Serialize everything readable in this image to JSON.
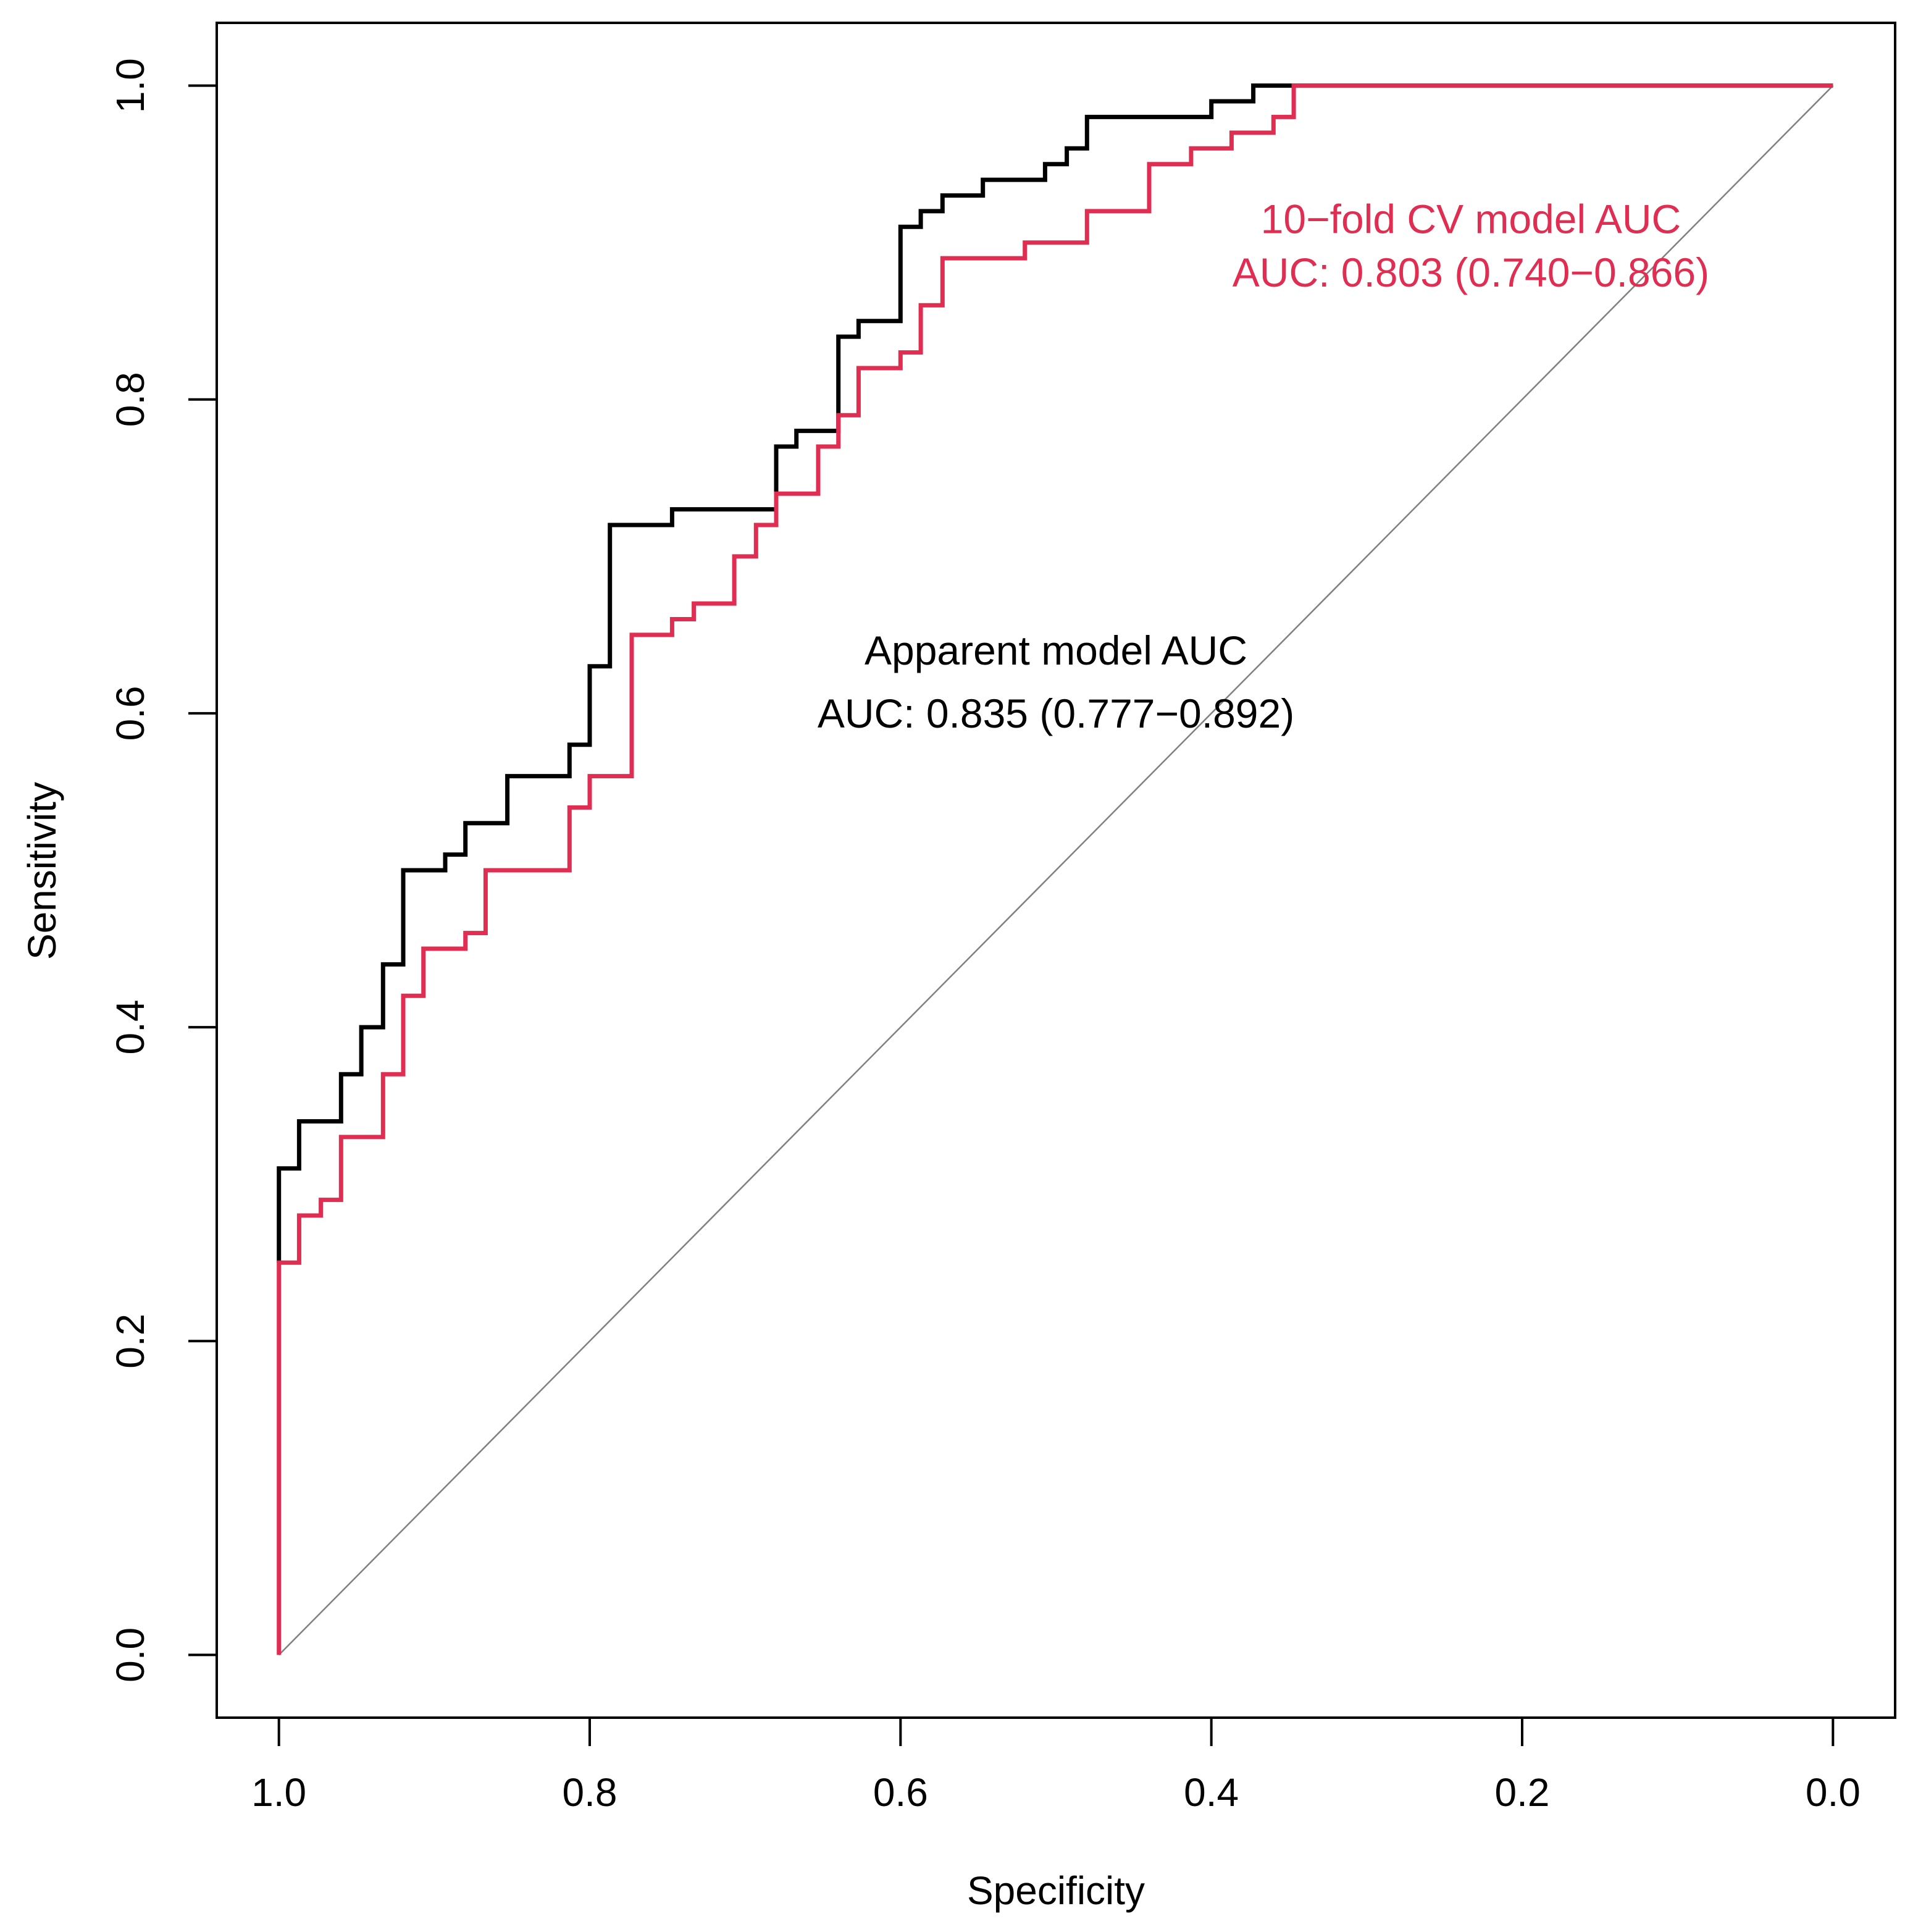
{
  "chart_data": {
    "type": "line",
    "title": "",
    "xlabel": "Specificity",
    "ylabel": "Sensitivity",
    "xlim": [
      1.04,
      -0.04
    ],
    "ylim": [
      -0.04,
      1.04
    ],
    "x_reversed": true,
    "x_ticks": [
      {
        "value": 1.0,
        "label": "1.0"
      },
      {
        "value": 0.8,
        "label": "0.8"
      },
      {
        "value": 0.6,
        "label": "0.6"
      },
      {
        "value": 0.4,
        "label": "0.4"
      },
      {
        "value": 0.2,
        "label": "0.2"
      },
      {
        "value": 0.0,
        "label": "0.0"
      }
    ],
    "y_ticks": [
      {
        "value": 0.0,
        "label": "0.0"
      },
      {
        "value": 0.2,
        "label": "0.2"
      },
      {
        "value": 0.4,
        "label": "0.4"
      },
      {
        "value": 0.6,
        "label": "0.6"
      },
      {
        "value": 0.8,
        "label": "0.8"
      },
      {
        "value": 1.0,
        "label": "1.0"
      }
    ],
    "reference_line": {
      "name": "chance",
      "x": [
        1.0,
        0.0
      ],
      "y": [
        0.0,
        1.0
      ],
      "color": "#808080"
    },
    "series": [
      {
        "name": "Apparent model",
        "color": "#000000",
        "x": [
          1.0,
          1.0,
          0.987,
          0.987,
          0.96,
          0.96,
          0.947,
          0.947,
          0.933,
          0.933,
          0.92,
          0.92,
          0.893,
          0.893,
          0.88,
          0.88,
          0.853,
          0.853,
          0.813,
          0.813,
          0.8,
          0.8,
          0.787,
          0.787,
          0.747,
          0.747,
          0.68,
          0.68,
          0.667,
          0.667,
          0.64,
          0.64,
          0.627,
          0.627,
          0.6,
          0.6,
          0.587,
          0.587,
          0.573,
          0.573,
          0.547,
          0.547,
          0.507,
          0.507,
          0.493,
          0.493,
          0.48,
          0.48,
          0.4,
          0.4,
          0.373,
          0.373,
          0.347,
          0.347,
          0.0
        ],
        "y": [
          0.25,
          0.31,
          0.31,
          0.34,
          0.34,
          0.37,
          0.37,
          0.4,
          0.4,
          0.44,
          0.44,
          0.5,
          0.5,
          0.51,
          0.51,
          0.53,
          0.53,
          0.56,
          0.56,
          0.58,
          0.58,
          0.63,
          0.63,
          0.72,
          0.72,
          0.73,
          0.73,
          0.77,
          0.77,
          0.78,
          0.78,
          0.84,
          0.84,
          0.85,
          0.85,
          0.91,
          0.91,
          0.92,
          0.92,
          0.93,
          0.93,
          0.94,
          0.94,
          0.95,
          0.95,
          0.96,
          0.96,
          0.98,
          0.98,
          0.99,
          0.99,
          1.0,
          1.0,
          1.0,
          1.0
        ]
      },
      {
        "name": "10-fold CV model",
        "color": "#DF2E51",
        "x": [
          1.0,
          1.0,
          0.987,
          0.987,
          0.973,
          0.973,
          0.96,
          0.96,
          0.933,
          0.933,
          0.92,
          0.92,
          0.907,
          0.907,
          0.88,
          0.88,
          0.867,
          0.867,
          0.813,
          0.813,
          0.8,
          0.8,
          0.773,
          0.773,
          0.747,
          0.747,
          0.733,
          0.733,
          0.707,
          0.707,
          0.693,
          0.693,
          0.68,
          0.68,
          0.653,
          0.653,
          0.64,
          0.64,
          0.627,
          0.627,
          0.6,
          0.6,
          0.587,
          0.587,
          0.573,
          0.573,
          0.52,
          0.52,
          0.48,
          0.48,
          0.44,
          0.44,
          0.413,
          0.413,
          0.387,
          0.387,
          0.36,
          0.36,
          0.347,
          0.347,
          0.333,
          0.333,
          0.0
        ],
        "y": [
          0.0,
          0.25,
          0.25,
          0.28,
          0.28,
          0.29,
          0.29,
          0.33,
          0.33,
          0.37,
          0.37,
          0.42,
          0.42,
          0.45,
          0.45,
          0.46,
          0.46,
          0.5,
          0.5,
          0.54,
          0.54,
          0.56,
          0.56,
          0.65,
          0.65,
          0.66,
          0.66,
          0.67,
          0.67,
          0.7,
          0.7,
          0.72,
          0.72,
          0.74,
          0.74,
          0.77,
          0.77,
          0.79,
          0.79,
          0.82,
          0.82,
          0.83,
          0.83,
          0.86,
          0.86,
          0.89,
          0.89,
          0.9,
          0.9,
          0.92,
          0.92,
          0.95,
          0.95,
          0.96,
          0.96,
          0.97,
          0.97,
          0.98,
          0.98,
          1.0,
          1.0,
          1.0,
          1.0
        ]
      }
    ],
    "annotations": [
      {
        "id": "cv-title",
        "text": "10−fold CV model AUC",
        "x": 0.233,
        "y": 0.906,
        "color": "#DF2E51"
      },
      {
        "id": "cv-auc",
        "text": "AUC: 0.803 (0.740−0.866)",
        "x": 0.233,
        "y": 0.872,
        "color": "#DF2E51"
      },
      {
        "id": "app-title",
        "text": "Apparent model AUC",
        "x": 0.5,
        "y": 0.631,
        "color": "#000000"
      },
      {
        "id": "app-auc",
        "text": "AUC: 0.835 (0.777−0.892)",
        "x": 0.5,
        "y": 0.591,
        "color": "#000000"
      }
    ]
  }
}
